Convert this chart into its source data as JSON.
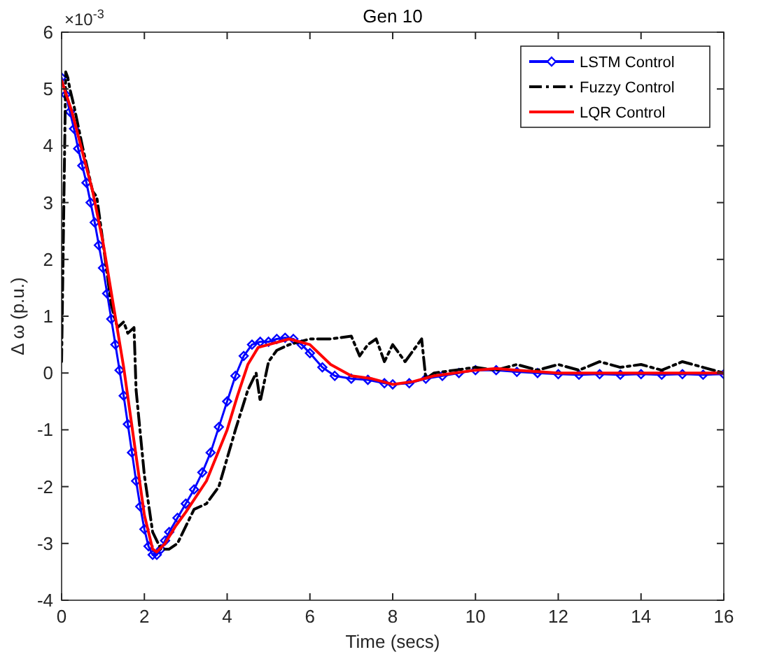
{
  "chart_data": {
    "type": "line",
    "title": "Gen 10",
    "xlabel": "Time (secs)",
    "ylabel": "Δ ω (p.u.)",
    "annotations": [
      "×10$^{-3}$"
    ],
    "xlim": [
      0,
      16
    ],
    "xticks": [
      0,
      2,
      4,
      6,
      8,
      10,
      12,
      14,
      16
    ],
    "ylim": [
      -4,
      6
    ],
    "yticks": [
      -4,
      -3,
      -2,
      -1,
      0,
      1,
      2,
      3,
      4,
      5,
      6
    ],
    "grid": false,
    "legend": "top right",
    "series": [
      {
        "name": "LSTM Control",
        "color": "#0000ff",
        "marker": "diamond",
        "line_style": "solid",
        "x": [
          0,
          0.1,
          0.2,
          0.3,
          0.4,
          0.5,
          0.6,
          0.7,
          0.8,
          0.9,
          1.0,
          1.1,
          1.2,
          1.3,
          1.4,
          1.5,
          1.6,
          1.7,
          1.8,
          1.9,
          2.0,
          2.1,
          2.2,
          2.3,
          2.4,
          2.5,
          2.6,
          2.8,
          3.0,
          3.2,
          3.4,
          3.6,
          3.8,
          4.0,
          4.2,
          4.4,
          4.6,
          4.8,
          5.0,
          5.2,
          5.4,
          5.6,
          5.8,
          6.0,
          6.3,
          6.6,
          7.0,
          7.4,
          7.8,
          8.0,
          8.4,
          8.8,
          9.2,
          9.6,
          10.0,
          10.5,
          11.0,
          11.5,
          12.0,
          12.5,
          13.0,
          13.5,
          14.0,
          14.5,
          15.0,
          15.5,
          16.0
        ],
        "values": [
          5.2,
          4.9,
          4.6,
          4.3,
          3.95,
          3.65,
          3.35,
          3.0,
          2.65,
          2.25,
          1.85,
          1.4,
          0.95,
          0.5,
          0.05,
          -0.4,
          -0.9,
          -1.4,
          -1.9,
          -2.35,
          -2.75,
          -3.05,
          -3.2,
          -3.2,
          -3.1,
          -2.95,
          -2.8,
          -2.55,
          -2.3,
          -2.05,
          -1.75,
          -1.4,
          -0.95,
          -0.5,
          -0.05,
          0.3,
          0.5,
          0.55,
          0.55,
          0.6,
          0.62,
          0.6,
          0.5,
          0.35,
          0.1,
          -0.05,
          -0.1,
          -0.12,
          -0.18,
          -0.2,
          -0.18,
          -0.1,
          -0.05,
          0.0,
          0.05,
          0.05,
          0.02,
          0.0,
          -0.02,
          -0.03,
          -0.02,
          -0.03,
          -0.02,
          -0.03,
          -0.02,
          -0.03,
          -0.02
        ]
      },
      {
        "name": "Fuzzy Control",
        "color": "#000000",
        "marker": "none",
        "line_style": "dashdot",
        "x": [
          0,
          0.1,
          0.15,
          0.2,
          0.3,
          0.5,
          0.75,
          0.85,
          1.0,
          1.2,
          1.35,
          1.5,
          1.6,
          1.75,
          1.8,
          2.0,
          2.2,
          2.4,
          2.6,
          2.8,
          3.0,
          3.2,
          3.5,
          3.8,
          4.0,
          4.2,
          4.5,
          4.7,
          4.8,
          5.0,
          5.2,
          5.5,
          6.0,
          6.5,
          7.0,
          7.2,
          7.4,
          7.6,
          7.8,
          8.0,
          8.3,
          8.7,
          8.8,
          9.0,
          9.5,
          10.0,
          10.5,
          11.0,
          11.5,
          12.0,
          12.5,
          13.0,
          13.5,
          14.0,
          14.5,
          15.0,
          15.5,
          16.0
        ],
        "values": [
          0.2,
          5.3,
          5.2,
          5.0,
          4.7,
          4.0,
          3.2,
          3.1,
          2.3,
          1.2,
          0.8,
          0.9,
          0.7,
          0.8,
          -0.3,
          -1.8,
          -2.8,
          -3.1,
          -3.1,
          -3.0,
          -2.7,
          -2.4,
          -2.3,
          -2.0,
          -1.5,
          -1.0,
          -0.3,
          0.0,
          -0.5,
          0.2,
          0.4,
          0.5,
          0.6,
          0.6,
          0.65,
          0.3,
          0.5,
          0.6,
          0.2,
          0.5,
          0.2,
          0.6,
          -0.1,
          0.0,
          0.05,
          0.1,
          0.05,
          0.15,
          0.05,
          0.15,
          0.05,
          0.2,
          0.1,
          0.15,
          0.05,
          0.2,
          0.1,
          0.0
        ]
      },
      {
        "name": "LQR Control",
        "color": "#ff0000",
        "marker": "none",
        "line_style": "solid",
        "x": [
          0,
          0.25,
          0.5,
          0.75,
          1.0,
          1.25,
          1.5,
          1.75,
          2.0,
          2.2,
          2.3,
          2.5,
          2.75,
          3.0,
          3.5,
          4.0,
          4.25,
          4.5,
          4.75,
          5.0,
          5.5,
          6.0,
          6.5,
          7.0,
          7.5,
          8.0,
          8.5,
          9.0,
          10.0,
          10.5,
          11.0,
          12.0,
          13.0,
          14.0,
          15.0,
          16.0
        ],
        "values": [
          5.15,
          4.6,
          3.9,
          3.2,
          2.3,
          1.2,
          0.1,
          -1.2,
          -2.5,
          -3.1,
          -3.15,
          -3.0,
          -2.7,
          -2.45,
          -1.9,
          -1.0,
          -0.4,
          0.15,
          0.45,
          0.5,
          0.6,
          0.5,
          0.15,
          -0.05,
          -0.1,
          -0.2,
          -0.15,
          -0.05,
          0.05,
          0.08,
          0.05,
          0.0,
          0.0,
          0.0,
          0.0,
          0.0
        ]
      }
    ]
  }
}
